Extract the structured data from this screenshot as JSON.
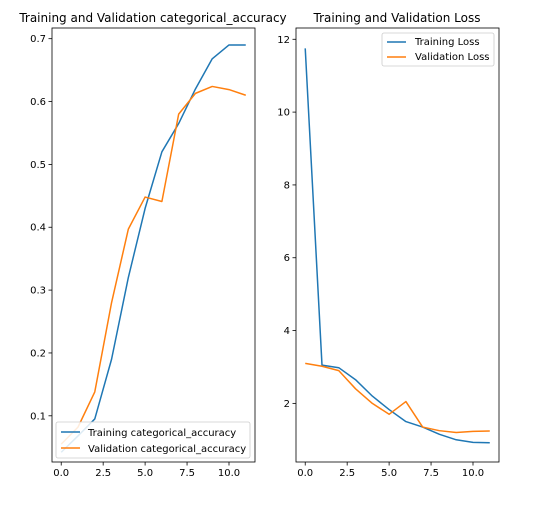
{
  "colors": {
    "training": "#1f77b4",
    "validation": "#ff7f0e"
  },
  "chart_data": [
    {
      "type": "line",
      "title": "Training and Validation categorical_accuracy",
      "xlabel": "",
      "ylabel": "",
      "xlim": [
        -0.55,
        11.55
      ],
      "ylim": [
        0.0265,
        0.717
      ],
      "x_ticks": [
        0,
        2.5,
        5,
        7.5,
        10
      ],
      "x_tick_labels": [
        "0.0",
        "2.5",
        "5.0",
        "7.5",
        "10.0"
      ],
      "y_ticks": [
        0.1,
        0.2,
        0.3,
        0.4,
        0.5,
        0.6,
        0.7
      ],
      "y_tick_labels": [
        "0.1",
        "0.2",
        "0.3",
        "0.4",
        "0.5",
        "0.6",
        "0.7"
      ],
      "legend_position": "lower-left",
      "x": [
        0,
        1,
        2,
        3,
        4,
        5,
        6,
        7,
        8,
        9,
        10,
        11
      ],
      "series": [
        {
          "name": "Training categorical_accuracy",
          "color_key": "training",
          "values": [
            0.042,
            0.068,
            0.095,
            0.19,
            0.32,
            0.43,
            0.52,
            0.565,
            0.62,
            0.668,
            0.69,
            0.69
          ]
        },
        {
          "name": "Validation categorical_accuracy",
          "color_key": "validation",
          "values": [
            0.055,
            0.082,
            0.138,
            0.28,
            0.397,
            0.448,
            0.441,
            0.58,
            0.613,
            0.624,
            0.619,
            0.61
          ]
        }
      ]
    },
    {
      "type": "line",
      "title": "Training and Validation Loss",
      "xlabel": "",
      "ylabel": "",
      "xlim": [
        -0.55,
        11.55
      ],
      "ylim": [
        0.39,
        12.31
      ],
      "x_ticks": [
        0,
        2.5,
        5,
        7.5,
        10
      ],
      "x_tick_labels": [
        "0.0",
        "2.5",
        "5.0",
        "7.5",
        "10.0"
      ],
      "y_ticks": [
        2,
        4,
        6,
        8,
        10,
        12
      ],
      "y_tick_labels": [
        "2",
        "4",
        "6",
        "8",
        "10",
        "12"
      ],
      "legend_position": "upper-right",
      "x": [
        0,
        1,
        2,
        3,
        4,
        5,
        6,
        7,
        8,
        9,
        10,
        11
      ],
      "series": [
        {
          "name": "Training Loss",
          "color_key": "training",
          "values": [
            11.75,
            3.05,
            2.98,
            2.65,
            2.2,
            1.83,
            1.5,
            1.35,
            1.15,
            1.0,
            0.93,
            0.92
          ]
        },
        {
          "name": "Validation Loss",
          "color_key": "validation",
          "values": [
            3.1,
            3.02,
            2.9,
            2.4,
            2.0,
            1.7,
            2.05,
            1.35,
            1.25,
            1.2,
            1.23,
            1.24
          ]
        }
      ]
    }
  ]
}
